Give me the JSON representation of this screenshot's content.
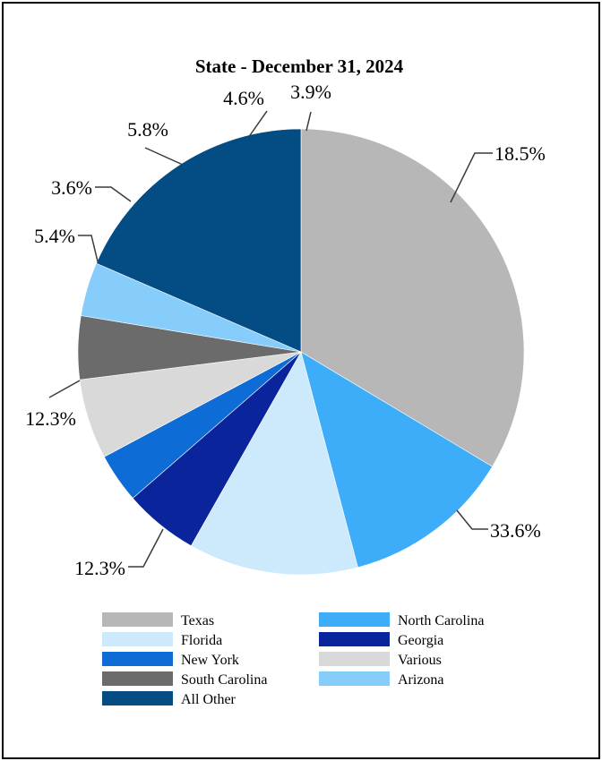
{
  "chart_data": {
    "type": "pie",
    "title": "State - December 31, 2024",
    "slices": [
      {
        "label": "Texas",
        "value": 33.6,
        "display": "33.6%",
        "color": "#b7b7b7"
      },
      {
        "label": "North Carolina",
        "value": 12.3,
        "display": "12.3%",
        "color": "#3dadf9"
      },
      {
        "label": "Florida",
        "value": 12.3,
        "display": "12.3%",
        "color": "#cdeafc"
      },
      {
        "label": "Georgia",
        "value": 5.4,
        "display": "5.4%",
        "color": "#0a249b"
      },
      {
        "label": "New York",
        "value": 3.6,
        "display": "3.6%",
        "color": "#0d6cd6"
      },
      {
        "label": "Various",
        "value": 5.8,
        "display": "5.8%",
        "color": "#d9d9d9"
      },
      {
        "label": "South Carolina",
        "value": 4.6,
        "display": "4.6%",
        "color": "#6b6b6b"
      },
      {
        "label": "Arizona",
        "value": 3.9,
        "display": "3.9%",
        "color": "#86cdfc"
      },
      {
        "label": "All Other",
        "value": 18.5,
        "display": "18.5%",
        "color": "#044c84"
      }
    ],
    "legend": {
      "placement": "bottom",
      "columns": [
        [
          "Texas",
          "Florida",
          "New York",
          "South Carolina",
          "All Other"
        ],
        [
          "North Carolina",
          "Georgia",
          "Various",
          "Arizona"
        ]
      ]
    }
  }
}
